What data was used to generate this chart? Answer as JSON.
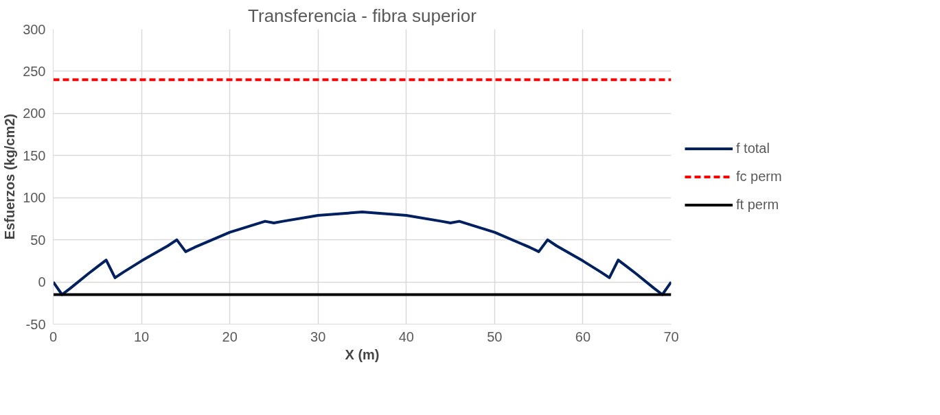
{
  "chart_data": {
    "type": "line",
    "title": "Transferencia - fibra superior",
    "xlabel": "X (m)",
    "ylabel": "Esfuerzos (kg/cm2)",
    "xlim": [
      0,
      70
    ],
    "xticks": [
      0,
      10,
      20,
      30,
      40,
      50,
      60,
      70
    ],
    "ylim": [
      -50,
      300
    ],
    "yticks": [
      -50,
      0,
      50,
      100,
      150,
      200,
      250,
      300
    ],
    "grid": true,
    "legend": "right",
    "marker": "none",
    "series": [
      {
        "name": "f total",
        "color": "#002060",
        "line_style": "solid",
        "x": [
          0,
          1,
          2,
          4,
          5,
          6,
          7,
          8,
          10,
          13,
          14,
          15,
          16,
          20,
          24,
          25,
          26,
          30,
          35,
          40,
          44,
          45,
          46,
          50,
          54,
          55,
          56,
          57,
          60,
          62,
          63,
          64,
          65,
          66,
          68,
          69,
          70
        ],
        "values": [
          0,
          -15,
          -7,
          10,
          18,
          26,
          5,
          12,
          25,
          43,
          50,
          36,
          41,
          59,
          72,
          70,
          72,
          79,
          83,
          79,
          72,
          70,
          72,
          59,
          41,
          36,
          50,
          43,
          25,
          12,
          5,
          26,
          18,
          10,
          -7,
          -15,
          0
        ]
      },
      {
        "name": "fc perm",
        "color": "#ff0000",
        "line_style": "dashed",
        "x": [
          0,
          70
        ],
        "values": [
          240,
          240
        ]
      },
      {
        "name": "ft perm",
        "color": "#000000",
        "line_style": "solid",
        "x": [
          0,
          70
        ],
        "values": [
          -15,
          -15
        ]
      }
    ]
  }
}
